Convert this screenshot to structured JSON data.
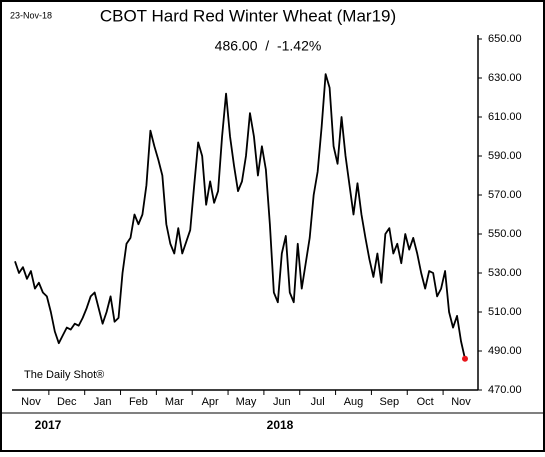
{
  "chart_data": {
    "type": "line",
    "date": "23-Nov-18",
    "title": "CBOT Hard Red Winter Wheat (Mar19)",
    "subtitle": "486.00  /  -1.42%",
    "source": "The Daily Shot®",
    "years": [
      "2017",
      "2018"
    ],
    "categories": [
      null,
      null,
      null,
      null,
      "Nov",
      null,
      null,
      null,
      null,
      null,
      null,
      null,
      null,
      "Dec",
      null,
      null,
      null,
      null,
      null,
      null,
      null,
      null,
      "Jan",
      null,
      null,
      null,
      null,
      null,
      null,
      null,
      null,
      "Feb",
      null,
      null,
      null,
      null,
      null,
      null,
      null,
      null,
      "Mar",
      null,
      null,
      null,
      null,
      null,
      null,
      null,
      null,
      "Apr",
      null,
      null,
      null,
      null,
      null,
      null,
      null,
      null,
      "May",
      null,
      null,
      null,
      null,
      null,
      null,
      null,
      null,
      "Jun",
      null,
      null,
      null,
      null,
      null,
      null,
      null,
      null,
      "Jul",
      null,
      null,
      null,
      null,
      null,
      null,
      null,
      null,
      "Aug",
      null,
      null,
      null,
      null,
      null,
      null,
      null,
      null,
      "Sep",
      null,
      null,
      null,
      null,
      null,
      null,
      null,
      null,
      "Oct",
      null,
      null,
      null,
      null,
      null,
      null,
      null,
      null,
      "Nov",
      null
    ],
    "series": [
      {
        "color": "#000000",
        "end_marker_color": "#e8151b",
        "values": [
          536,
          530,
          533,
          527,
          531,
          522,
          525,
          520,
          518,
          510,
          500,
          494,
          498,
          502,
          501,
          504,
          503,
          507,
          512,
          518,
          520,
          512,
          504,
          510,
          518,
          505,
          507,
          530,
          545,
          548,
          560,
          555,
          560,
          575,
          603,
          595,
          588,
          580,
          555,
          545,
          540,
          553,
          540,
          546,
          552,
          575,
          597,
          590,
          565,
          577,
          566,
          572,
          600,
          622,
          600,
          585,
          572,
          577,
          590,
          612,
          600,
          580,
          595,
          583,
          555,
          520,
          515,
          540,
          549,
          520,
          515,
          545,
          522,
          535,
          548,
          570,
          582,
          605,
          632,
          625,
          595,
          586,
          610,
          590,
          575,
          560,
          576,
          560,
          548,
          537,
          528,
          540,
          525,
          550,
          553,
          540,
          545,
          535,
          550,
          542,
          548,
          540,
          530,
          522,
          531,
          530,
          518,
          522,
          531,
          510,
          502,
          508,
          495,
          486
        ]
      }
    ],
    "ylim": [
      470,
      650
    ],
    "yticks": [
      {
        "value": 470,
        "label": "470.00"
      },
      {
        "value": 490,
        "label": "490.00"
      },
      {
        "value": 510,
        "label": "510.00"
      },
      {
        "value": 530,
        "label": "530.00"
      },
      {
        "value": 550,
        "label": "550.00"
      },
      {
        "value": 570,
        "label": "570.00"
      },
      {
        "value": 590,
        "label": "590.00"
      },
      {
        "value": 610,
        "label": "610.00"
      },
      {
        "value": 630,
        "label": "630.00"
      },
      {
        "value": 650,
        "label": "650.00"
      }
    ],
    "grid": false
  }
}
